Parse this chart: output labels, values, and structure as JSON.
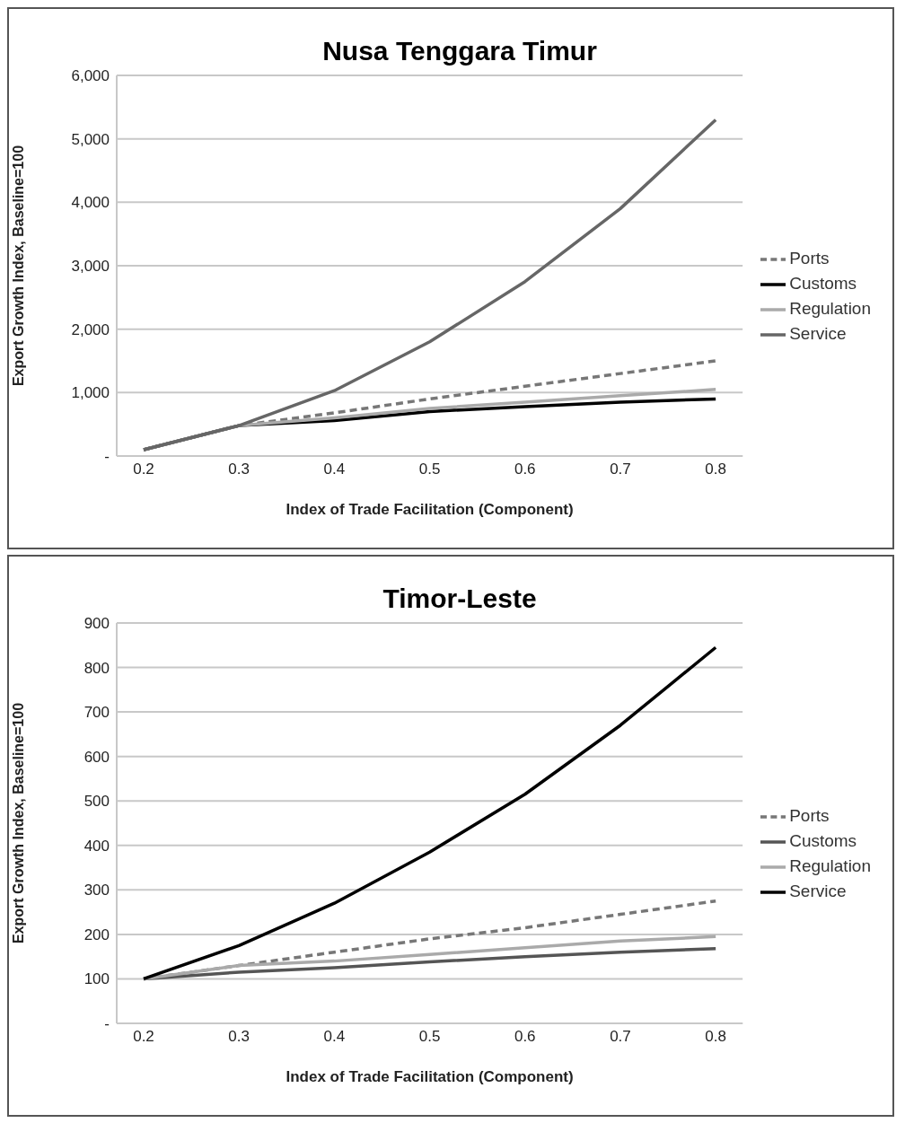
{
  "chart_data": [
    {
      "type": "line",
      "title": "Nusa Tenggara Timur",
      "xlabel": "Index of Trade Facilitation (Component)",
      "ylabel": "Export Growth Index, Baseline=100",
      "categories": [
        "0.2",
        "0.3",
        "0.4",
        "0.5",
        "0.6",
        "0.7",
        "0.8"
      ],
      "series": [
        {
          "name": "Ports",
          "color": "#777777",
          "line_style": "dashed",
          "values": [
            100,
            480,
            680,
            900,
            1100,
            1300,
            1500
          ]
        },
        {
          "name": "Customs",
          "color": "#000000",
          "line_style": "solid",
          "values": [
            100,
            480,
            560,
            700,
            780,
            850,
            900
          ]
        },
        {
          "name": "Regulation",
          "color": "#aaaaaa",
          "line_style": "solid",
          "values": [
            100,
            480,
            600,
            750,
            850,
            950,
            1050
          ]
        },
        {
          "name": "Service",
          "color": "#666666",
          "line_style": "solid",
          "values": [
            100,
            480,
            1030,
            1800,
            2750,
            3900,
            5300
          ]
        }
      ],
      "ylim": [
        0,
        6000
      ],
      "yticks": [
        {
          "value": 0,
          "label": "-"
        },
        {
          "value": 1000,
          "label": "1,000"
        },
        {
          "value": 2000,
          "label": "2,000"
        },
        {
          "value": 3000,
          "label": "3,000"
        },
        {
          "value": 4000,
          "label": "4,000"
        },
        {
          "value": 5000,
          "label": "5,000"
        },
        {
          "value": 6000,
          "label": "6,000"
        }
      ],
      "grid": "y",
      "legend": "right",
      "marker": "none"
    },
    {
      "type": "line",
      "title": "Timor-Leste",
      "xlabel": "Index of Trade Facilitation (Component)",
      "ylabel": "Export Growth Index, Baseline=100",
      "categories": [
        "0.2",
        "0.3",
        "0.4",
        "0.5",
        "0.6",
        "0.7",
        "0.8"
      ],
      "series": [
        {
          "name": "Ports",
          "color": "#777777",
          "line_style": "dashed",
          "values": [
            100,
            130,
            160,
            190,
            215,
            245,
            275
          ]
        },
        {
          "name": "Customs",
          "color": "#555555",
          "line_style": "solid",
          "values": [
            100,
            115,
            125,
            138,
            150,
            160,
            168
          ]
        },
        {
          "name": "Regulation",
          "color": "#aaaaaa",
          "line_style": "solid",
          "values": [
            100,
            130,
            140,
            155,
            170,
            185,
            195
          ]
        },
        {
          "name": "Service",
          "color": "#000000",
          "line_style": "solid",
          "values": [
            100,
            175,
            270,
            385,
            515,
            670,
            845
          ]
        }
      ],
      "ylim": [
        0,
        900
      ],
      "yticks": [
        {
          "value": 0,
          "label": "-"
        },
        100,
        200,
        300,
        400,
        500,
        600,
        700,
        800,
        900
      ],
      "grid": "y",
      "legend": "right",
      "marker": "none"
    }
  ]
}
